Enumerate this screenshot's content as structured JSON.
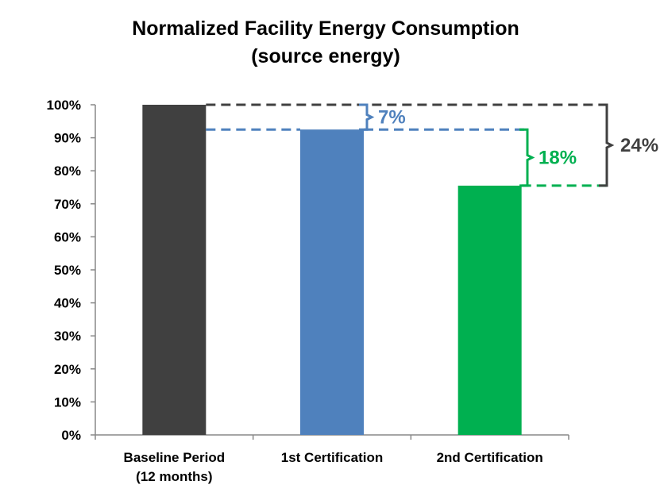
{
  "chart_data": {
    "type": "bar",
    "title_lines": [
      "Normalized Facility Energy Consumption",
      "(source energy)"
    ],
    "categories": [
      [
        "Baseline Period",
        "(12 months)"
      ],
      [
        "1st Certification"
      ],
      [
        "2nd Certification"
      ]
    ],
    "values": [
      100,
      92.5,
      75.5
    ],
    "bar_colors": [
      "#404040",
      "#4f81bd",
      "#00b050"
    ],
    "ylim": [
      0,
      100
    ],
    "yticks": [
      "0%",
      "10%",
      "20%",
      "30%",
      "40%",
      "50%",
      "60%",
      "70%",
      "80%",
      "90%",
      "100%"
    ],
    "grid": false,
    "legend": "none",
    "annotations": [
      {
        "label": "7%",
        "color": "#4f81bd",
        "from_bar": 0,
        "to_bar": 1,
        "bracket": "after-bar-2"
      },
      {
        "label": "18%",
        "color": "#00b050",
        "from_bar": 1,
        "to_bar": 2,
        "bracket": "after-bar-3"
      },
      {
        "label": "24%",
        "color": "#404040",
        "from_bar": 0,
        "to_bar": 2,
        "bracket": "right-edge"
      }
    ]
  }
}
